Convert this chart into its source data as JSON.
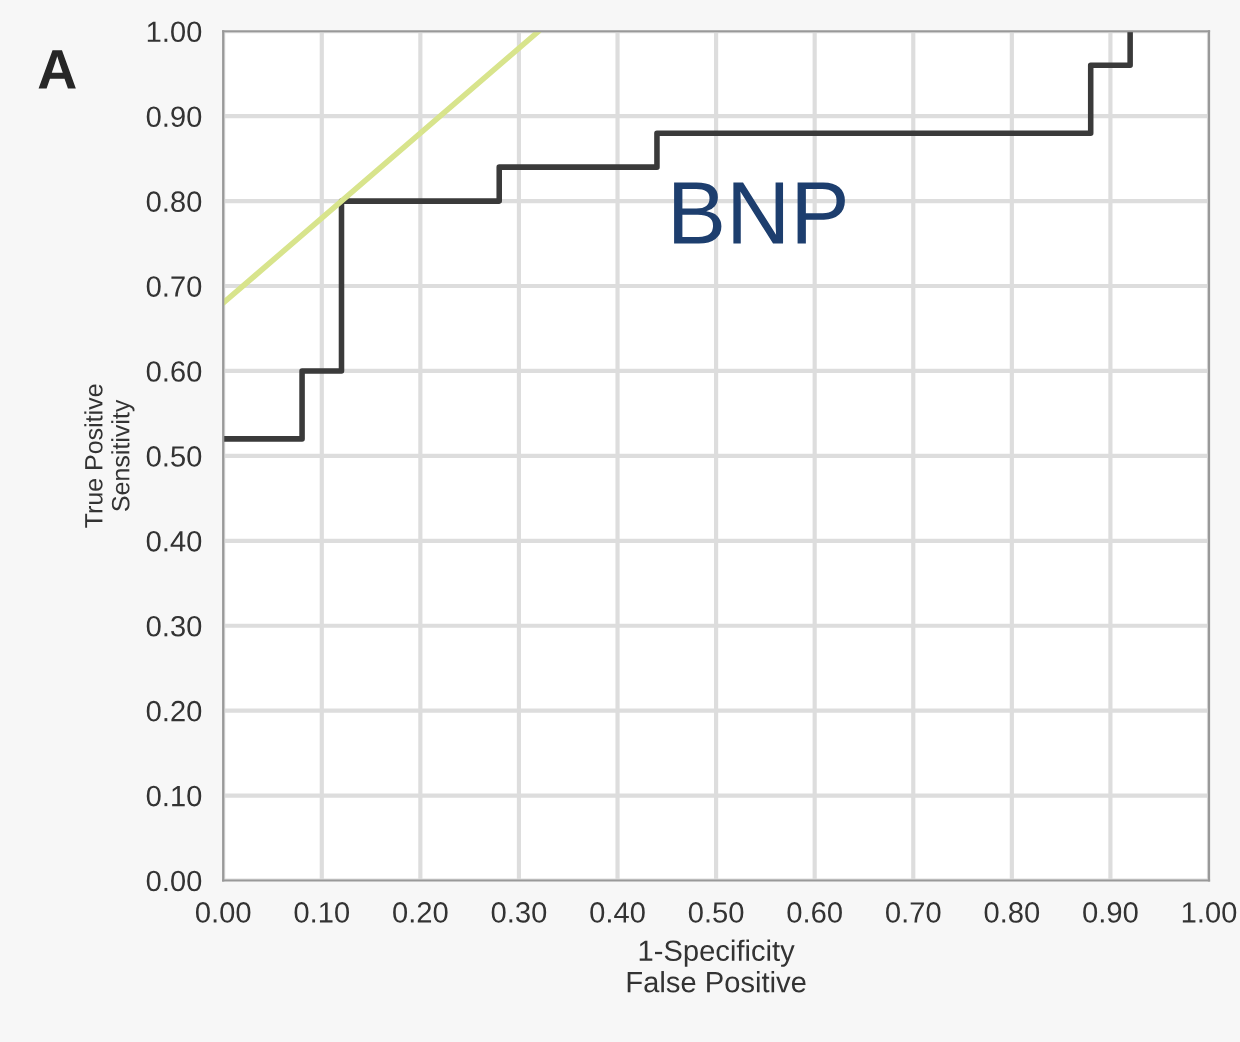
{
  "chart_data": {
    "type": "line",
    "title": "A",
    "xlabel": "1-Specificity\nFalse Positive",
    "ylabel": "True Positive\nSensitivity",
    "series": [
      {
        "color": "#3a3a3a",
        "x": [
          0,
          0.08,
          0.08,
          0.12,
          0.12,
          0.28,
          0.28,
          0.44,
          0.44,
          0.88,
          0.88,
          0.92,
          0.92
        ],
        "values": [
          0.52,
          0.52,
          0.6,
          0.6,
          0.8,
          0.8,
          0.84,
          0.84,
          0.88,
          0.88,
          0.96,
          0.96,
          1.0
        ]
      },
      {
        "color": "#d8e48c",
        "x": [
          0,
          0.32
        ],
        "values": [
          0.68,
          1.0
        ]
      }
    ],
    "annotations": [
      "BNP"
    ],
    "xlim": [
      0,
      1
    ],
    "ylim": [
      0,
      1
    ],
    "xticks": [
      {
        "value": 0,
        "label": "0.00"
      },
      {
        "value": 0.1,
        "label": "0.10"
      },
      {
        "value": 0.2,
        "label": "0.20"
      },
      {
        "value": 0.3,
        "label": "0.30"
      },
      {
        "value": 0.4,
        "label": "0.40"
      },
      {
        "value": 0.5,
        "label": "0.50"
      },
      {
        "value": 0.6,
        "label": "0.60"
      },
      {
        "value": 0.7,
        "label": "0.70"
      },
      {
        "value": 0.8,
        "label": "0.80"
      },
      {
        "value": 0.9,
        "label": "0.90"
      },
      {
        "value": 1,
        "label": "1.00"
      }
    ],
    "yticks": [
      {
        "value": 0,
        "label": "0.00"
      },
      {
        "value": 0.1,
        "label": "0.10"
      },
      {
        "value": 0.2,
        "label": "0.20"
      },
      {
        "value": 0.3,
        "label": "0.30"
      },
      {
        "value": 0.4,
        "label": "0.40"
      },
      {
        "value": 0.5,
        "label": "0.50"
      },
      {
        "value": 0.6,
        "label": "0.60"
      },
      {
        "value": 0.7,
        "label": "0.70"
      },
      {
        "value": 0.8,
        "label": "0.80"
      },
      {
        "value": 0.9,
        "label": "0.90"
      },
      {
        "value": 1,
        "label": "1.00"
      }
    ],
    "grid": true
  }
}
